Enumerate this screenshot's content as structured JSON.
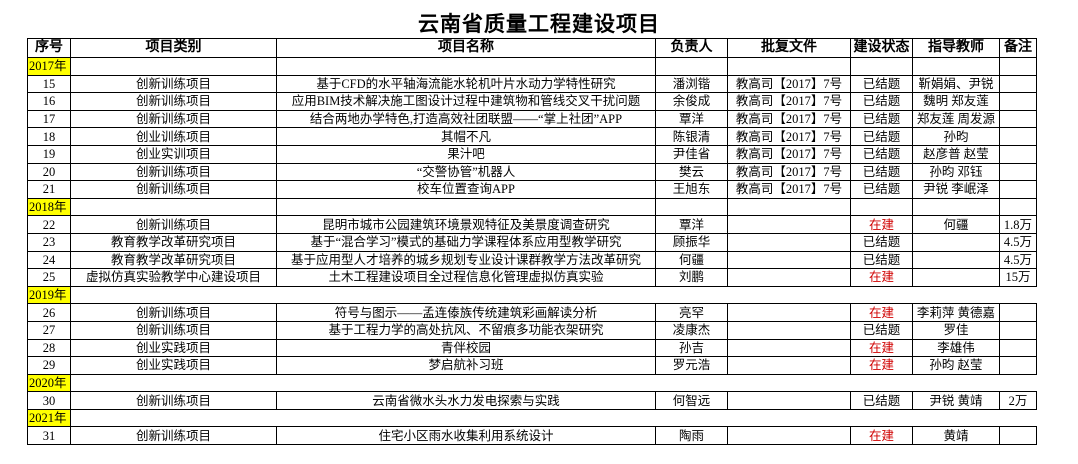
{
  "title": "云南省质量工程建设项目",
  "colors": {
    "year_highlight": "#ffff00",
    "in_progress": "#d00000"
  },
  "headers": [
    "序号",
    "项目类别",
    "项目名称",
    "负责人",
    "批复文件",
    "建设状态",
    "指导教师",
    "备注"
  ],
  "groups": [
    {
      "year": "2017年",
      "rows": [
        {
          "no": "15",
          "category": "创新训练项目",
          "name": "基于CFD的水平轴海流能水轮机叶片水动力学特性研究",
          "leader": "潘浏锴",
          "approval": "教高司【2017】7号",
          "status": "已结题",
          "advisor": "靳娟娟、尹锐",
          "note": ""
        },
        {
          "no": "16",
          "category": "创新训练项目",
          "name": "应用BIM技术解决施工图设计过程中建筑物和管线交叉干扰问题",
          "leader": "余俊成",
          "approval": "教高司【2017】7号",
          "status": "已结题",
          "advisor": "魏明 郑友莲",
          "note": ""
        },
        {
          "no": "17",
          "category": "创新训练项目",
          "name": "结合两地办学特色,打造高效社团联盟——“掌上社团”APP",
          "leader": "覃洋",
          "approval": "教高司【2017】7号",
          "status": "已结题",
          "advisor": "郑友莲 周发源",
          "note": ""
        },
        {
          "no": "18",
          "category": "创业训练项目",
          "name": "其帽不凡",
          "leader": "陈银清",
          "approval": "教高司【2017】7号",
          "status": "已结题",
          "advisor": "孙昀",
          "note": ""
        },
        {
          "no": "19",
          "category": "创业实训项目",
          "name": "果汁吧",
          "leader": "尹佳省",
          "approval": "教高司【2017】7号",
          "status": "已结题",
          "advisor": "赵彦普 赵莹",
          "note": ""
        },
        {
          "no": "20",
          "category": "创新训练项目",
          "name": "“交警协管”机器人",
          "leader": "樊云",
          "approval": "教高司【2017】7号",
          "status": "已结题",
          "advisor": "孙昀 邓钰",
          "note": ""
        },
        {
          "no": "21",
          "category": "创新训练项目",
          "name": "校车位置查询APP",
          "leader": "王旭东",
          "approval": "教高司【2017】7号",
          "status": "已结题",
          "advisor": "尹锐 李岷泽",
          "note": ""
        }
      ]
    },
    {
      "year": "2018年",
      "rows": [
        {
          "no": "22",
          "category": "创新训练项目",
          "name": "昆明市城市公园建筑环境景观特征及美景度调查研究",
          "leader": "覃洋",
          "approval": "",
          "status": "在建",
          "advisor": "何疆",
          "note": "1.8万"
        },
        {
          "no": "23",
          "category": "教育教学改革研究项目",
          "name": "基于“混合学习”模式的基础力学课程体系应用型教学研究",
          "leader": "顾振华",
          "approval": "",
          "status": "已结题",
          "advisor": "",
          "note": "4.5万"
        },
        {
          "no": "24",
          "category": "教育教学改革研究项目",
          "name": "基于应用型人才培养的城乡规划专业设计课群教学方法改革研究",
          "leader": "何疆",
          "approval": "",
          "status": "已结题",
          "advisor": "",
          "note": "4.5万"
        },
        {
          "no": "25",
          "category": "虚拟仿真实验教学中心建设项目",
          "name": "土木工程建设项目全过程信息化管理虚拟仿真实验",
          "leader": "刘鹏",
          "approval": "",
          "status": "在建",
          "advisor": "",
          "note": "15万"
        }
      ]
    },
    {
      "year": "2019年",
      "rows": [
        {
          "no": "26",
          "category": "创新训练项目",
          "name": "符号与图示——孟连傣族传统建筑彩画解读分析",
          "leader": "亮罕",
          "approval": "",
          "status": "在建",
          "advisor": "李莉萍 黄德嘉",
          "note": ""
        },
        {
          "no": "27",
          "category": "创新训练项目",
          "name": "基于工程力学的高处抗风、不留痕多功能衣架研究",
          "leader": "凌康杰",
          "approval": "",
          "status": "已结题",
          "advisor": "罗佳",
          "note": ""
        },
        {
          "no": "28",
          "category": "创业实践项目",
          "name": "青伴校园",
          "leader": "孙吉",
          "approval": "",
          "status": "在建",
          "advisor": "李雄伟",
          "note": ""
        },
        {
          "no": "29",
          "category": "创业实践项目",
          "name": "梦启航补习班",
          "leader": "罗元浩",
          "approval": "",
          "status": "在建",
          "advisor": "孙昀 赵莹",
          "note": ""
        }
      ]
    },
    {
      "year": "2020年",
      "rows": [
        {
          "no": "30",
          "category": "创新训练项目",
          "name": "云南省微水头水力发电探索与实践",
          "leader": "何智远",
          "approval": "",
          "status": "已结题",
          "advisor": "尹锐 黄靖",
          "note": "2万"
        }
      ]
    },
    {
      "year": "2021年",
      "rows": [
        {
          "no": "31",
          "category": "创新训练项目",
          "name": "住宅小区雨水收集利用系统设计",
          "leader": "陶雨",
          "approval": "",
          "status": "在建",
          "advisor": "黄靖",
          "note": ""
        }
      ]
    }
  ]
}
